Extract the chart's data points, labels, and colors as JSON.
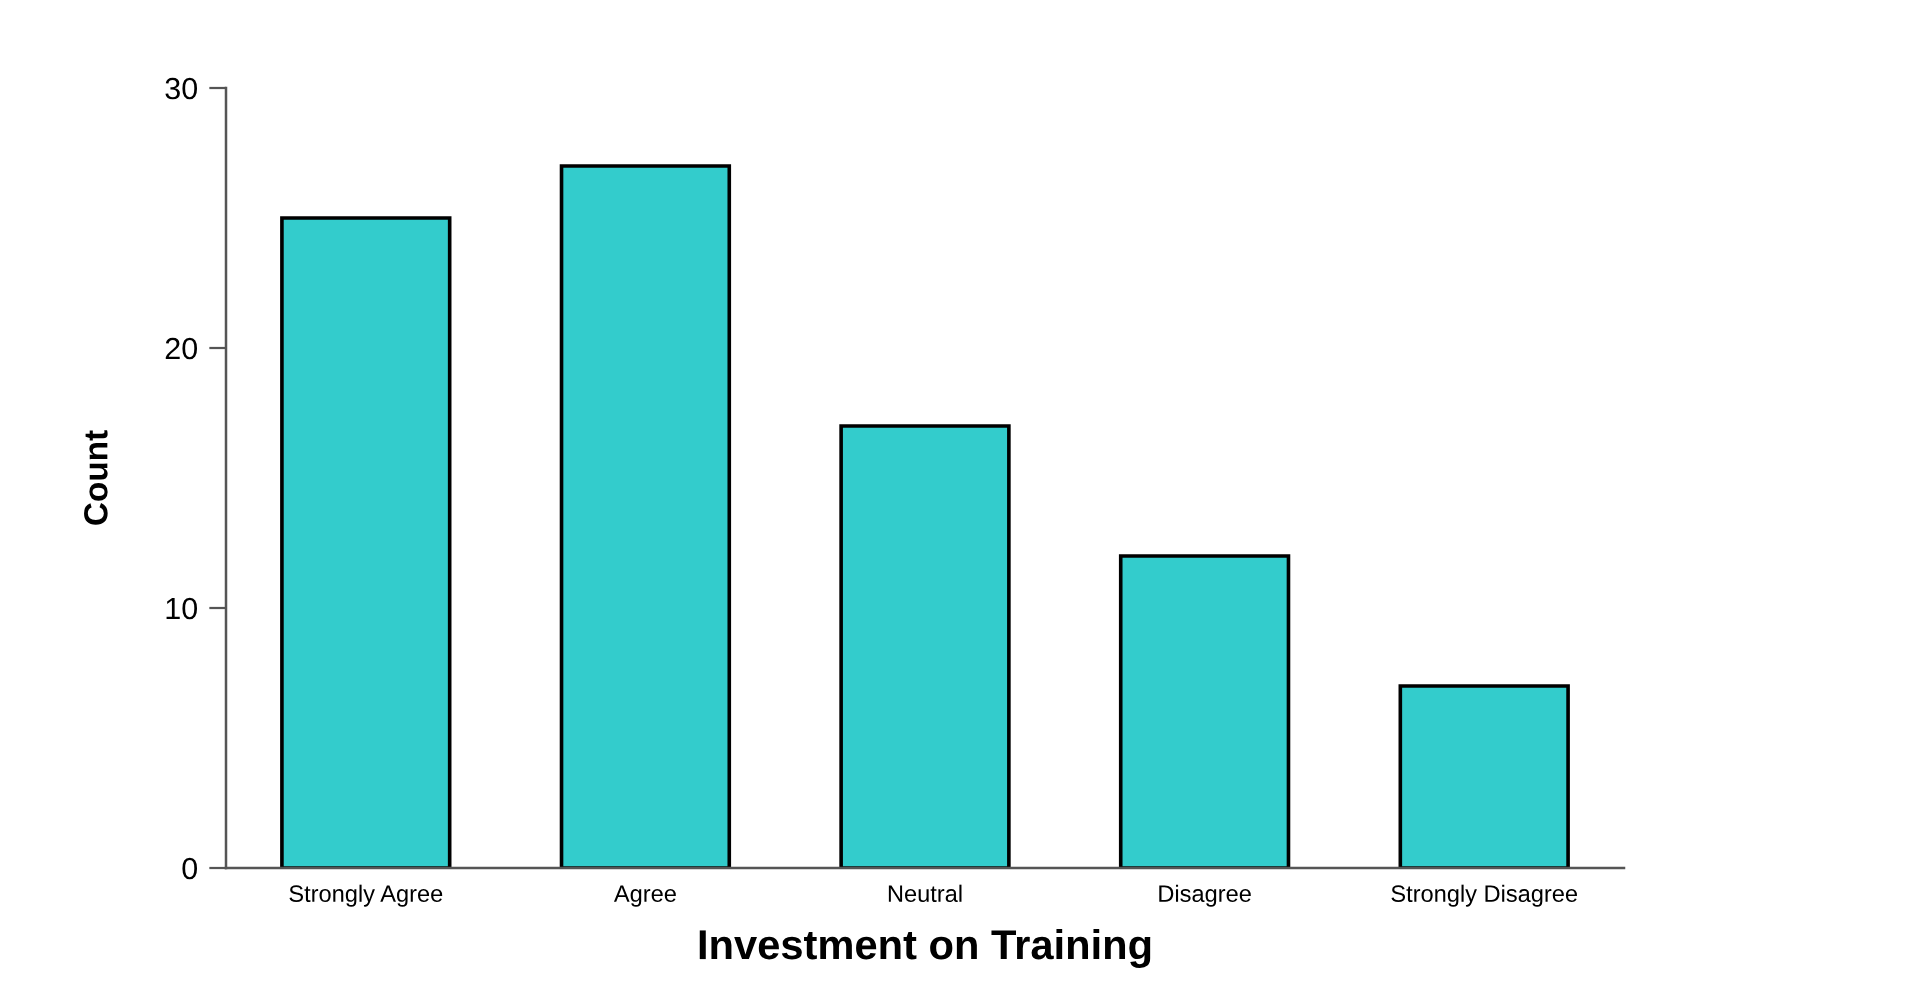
{
  "chart_data": {
    "type": "bar",
    "categories": [
      "Strongly Agree",
      "Agree",
      "Neutral",
      "Disagree",
      "Strongly Disagree"
    ],
    "values": [
      25,
      27,
      17,
      12,
      7
    ],
    "color": "#33cccc",
    "xlabel": "Investment on Training",
    "ylabel": "Count",
    "ylim": [
      0,
      30
    ],
    "yticks": [
      0,
      10,
      20,
      30
    ]
  }
}
